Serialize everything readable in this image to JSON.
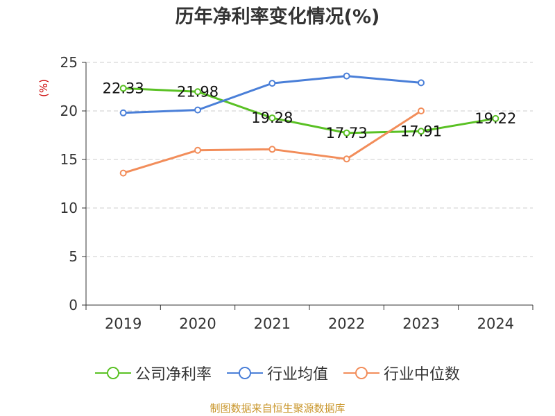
{
  "title": "历年净利率变化情况(%)",
  "source_note": "制图数据来自恒生聚源数据库",
  "chart_data": {
    "type": "line",
    "title": "历年净利率变化情况(%)",
    "ylabel": "(%)",
    "ylabel_color": "#cc0000",
    "categories": [
      "2019",
      "2020",
      "2021",
      "2022",
      "2023",
      "2024"
    ],
    "ylim": [
      0,
      25
    ],
    "yticks": [
      0,
      5,
      10,
      15,
      20,
      25
    ],
    "grid": true,
    "legend_position": "bottom",
    "series": [
      {
        "name": "公司净利率",
        "color": "#5ac124",
        "values": [
          22.33,
          21.98,
          19.28,
          17.73,
          17.91,
          19.22
        ],
        "labels": [
          "22.33",
          "21.98",
          "19.28",
          "17.73",
          "17.91",
          "19.22"
        ]
      },
      {
        "name": "行业均值",
        "color": "#4a7fd8",
        "values": [
          19.8,
          20.1,
          22.85,
          23.6,
          22.9,
          null
        ]
      },
      {
        "name": "行业中位数",
        "color": "#f28d5a",
        "values": [
          13.6,
          15.95,
          16.05,
          15.05,
          20.0,
          null
        ]
      }
    ]
  }
}
